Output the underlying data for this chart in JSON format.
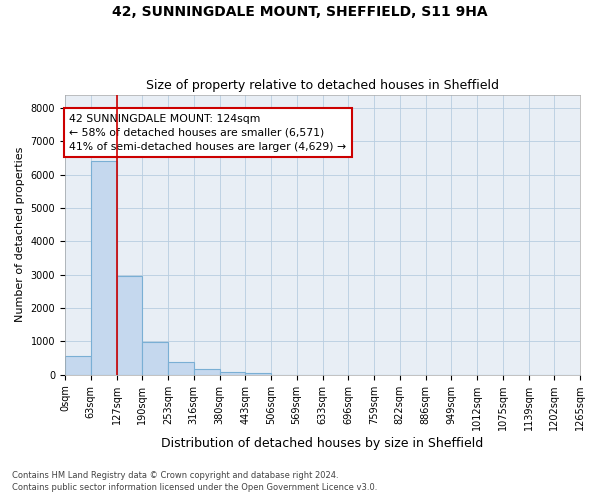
{
  "title1": "42, SUNNINGDALE MOUNT, SHEFFIELD, S11 9HA",
  "title2": "Size of property relative to detached houses in Sheffield",
  "xlabel": "Distribution of detached houses by size in Sheffield",
  "ylabel": "Number of detached properties",
  "footnote1": "Contains HM Land Registry data © Crown copyright and database right 2024.",
  "footnote2": "Contains public sector information licensed under the Open Government Licence v3.0.",
  "bar_edges": [
    0,
    63,
    127,
    190,
    253,
    316,
    380,
    443,
    506,
    569,
    633,
    696,
    759,
    822,
    886,
    949,
    1012,
    1075,
    1139,
    1202,
    1265
  ],
  "bar_heights": [
    560,
    6400,
    2950,
    975,
    380,
    170,
    80,
    40,
    0,
    0,
    0,
    0,
    0,
    0,
    0,
    0,
    0,
    0,
    0,
    0
  ],
  "bar_color": "#c5d8ee",
  "bar_edge_color": "#7aafd4",
  "property_line_x": 127,
  "property_line_color": "#cc0000",
  "annotation_line1": "42 SUNNINGDALE MOUNT: 124sqm",
  "annotation_line2": "← 58% of detached houses are smaller (6,571)",
  "annotation_line3": "41% of semi-detached houses are larger (4,629) →",
  "annotation_box_color": "#cc0000",
  "ylim": [
    0,
    8400
  ],
  "yticks": [
    0,
    1000,
    2000,
    3000,
    4000,
    5000,
    6000,
    7000,
    8000
  ],
  "bg_color": "#ffffff",
  "plot_bg_color": "#e8eef5",
  "grid_color": "#b8cde0",
  "title1_fontsize": 10,
  "title2_fontsize": 9,
  "ylabel_fontsize": 8,
  "xlabel_fontsize": 9,
  "tick_fontsize": 7,
  "footnote_fontsize": 6
}
